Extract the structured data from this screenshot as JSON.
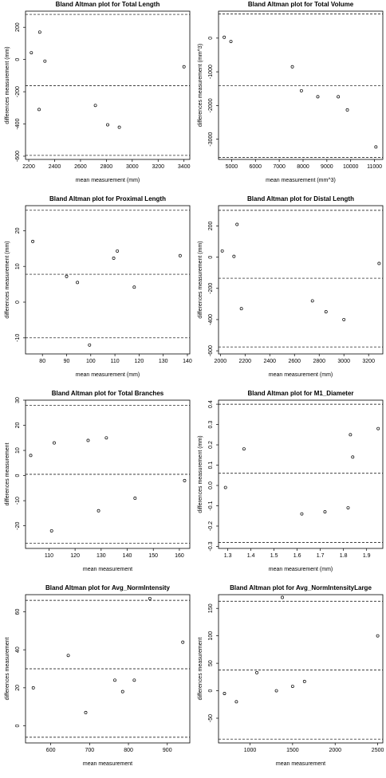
{
  "chart_data": [
    {
      "type": "scatter",
      "title": "Bland Altman plot for Total Length",
      "x_label": "mean measurement (mm)",
      "y_label": "differences measurement (mm)",
      "x": [
        2220,
        2285,
        2325,
        2280,
        2715,
        2810,
        2900,
        3400
      ],
      "values": [
        42,
        170,
        -10,
        -310,
        -285,
        -405,
        -420,
        -45
      ],
      "reference_lines": [
        280,
        -163,
        -595
      ],
      "xlim": [
        2175,
        3445
      ],
      "ylim": [
        -620,
        300
      ],
      "xticks": [
        2200,
        2400,
        2600,
        2800,
        3000,
        3200,
        3400
      ],
      "yticks": [
        -600,
        -400,
        -200,
        0,
        200
      ]
    },
    {
      "type": "scatter",
      "title": "Bland Altman plot for Total Volume",
      "x_label": "mean measurement (mm^3)",
      "y_label": "differences measurement (mm^3)",
      "x": [
        4690,
        4970,
        7550,
        7930,
        8620,
        9480,
        9860,
        11060
      ],
      "values": [
        25,
        -100,
        -850,
        -1560,
        -1740,
        -1740,
        -2130,
        -3230
      ],
      "reference_lines": [
        720,
        -1410,
        -3540
      ],
      "xlim": [
        4450,
        11350
      ],
      "ylim": [
        -3600,
        800
      ],
      "xticks": [
        5000,
        6000,
        7000,
        8000,
        9000,
        10000,
        11000
      ],
      "yticks": [
        -3000,
        -2000,
        -1000,
        0
      ]
    },
    {
      "type": "scatter",
      "title": "Bland Altman plot for Proximal Length",
      "x_label": "mean measurement (mm)",
      "y_label": "differences measurement (mm)",
      "x": [
        76,
        90,
        94.5,
        99.5,
        109.5,
        111,
        118,
        137
      ],
      "values": [
        17,
        7.2,
        5.5,
        -12,
        12.3,
        14.3,
        4.2,
        13
      ],
      "reference_lines": [
        25.7,
        7.8,
        -10
      ],
      "xlim": [
        73,
        141
      ],
      "ylim": [
        -14.5,
        27
      ],
      "xticks": [
        80,
        90,
        100,
        110,
        120,
        130,
        140
      ],
      "yticks": [
        -10,
        0,
        10,
        20
      ]
    },
    {
      "type": "scatter",
      "title": "Bland Altman plot for Distal Length",
      "x_label": "mean measurement (mm)",
      "y_label": "differences measurement (mm)",
      "x": [
        2015,
        2110,
        2135,
        2170,
        2745,
        2855,
        3000,
        3285
      ],
      "values": [
        40,
        5,
        210,
        -330,
        -280,
        -350,
        -400,
        -40
      ],
      "reference_lines": [
        300,
        -135,
        -575
      ],
      "xlim": [
        1985,
        3315
      ],
      "ylim": [
        -620,
        330
      ],
      "xticks": [
        2000,
        2200,
        2400,
        2600,
        2800,
        3000,
        3200
      ],
      "yticks": [
        -600,
        -400,
        -200,
        0,
        200
      ]
    },
    {
      "type": "scatter",
      "title": "Bland Altman plot for Total Branches",
      "x_label": "mean measurement",
      "y_label": "differences measurement",
      "x": [
        103,
        111,
        112,
        125,
        129,
        132,
        143,
        162
      ],
      "values": [
        8,
        -22,
        13,
        14,
        -14,
        15,
        -9,
        -2
      ],
      "reference_lines": [
        28,
        0.5,
        -27
      ],
      "xlim": [
        101,
        164
      ],
      "ylim": [
        -29,
        30
      ],
      "xticks": [
        110,
        120,
        130,
        140,
        150,
        160
      ],
      "yticks": [
        -20,
        -10,
        0,
        10,
        20,
        30
      ]
    },
    {
      "type": "scatter",
      "title": "Bland Altman plot for M1_Diameter",
      "x_label": "mean measurement (mm)",
      "y_label": "differences measurement (mm)",
      "x": [
        1.29,
        1.37,
        1.62,
        1.72,
        1.82,
        1.83,
        1.84,
        1.95
      ],
      "values": [
        -0.01,
        0.18,
        -0.14,
        -0.13,
        -0.11,
        0.25,
        0.14,
        0.28
      ],
      "reference_lines": [
        0.4,
        0.06,
        -0.28
      ],
      "xlim": [
        1.26,
        1.97
      ],
      "ylim": [
        -0.31,
        0.42
      ],
      "xticks": [
        1.3,
        1.4,
        1.5,
        1.6,
        1.7,
        1.8,
        1.9
      ],
      "yticks": [
        -0.3,
        -0.2,
        -0.1,
        {
          "value": 0,
          "label": "0.0"
        },
        0.1,
        0.2,
        0.3,
        0.4
      ]
    },
    {
      "type": "scatter",
      "title": "Bland Altman plot for Avg_NormIntensity",
      "x_label": "mean measurement",
      "y_label": "differences measurement",
      "x": [
        555,
        645,
        690,
        765,
        785,
        815,
        855,
        940
      ],
      "values": [
        20,
        37,
        7,
        24,
        18,
        24,
        67,
        44
      ],
      "reference_lines": [
        66,
        30,
        -6
      ],
      "xlim": [
        535,
        958
      ],
      "ylim": [
        -9,
        69
      ],
      "xticks": [
        600,
        700,
        800,
        900
      ],
      "yticks": [
        0,
        20,
        40,
        60
      ]
    },
    {
      "type": "scatter",
      "title": "Bland Altman plot for Avg_NormIntensityLarge",
      "x_label": "mean measurement",
      "y_label": "differences measurement",
      "x": [
        700,
        840,
        1080,
        1310,
        1380,
        1500,
        1640,
        2500
      ],
      "values": [
        -5,
        -20,
        33,
        0,
        170,
        8,
        17,
        100
      ],
      "reference_lines": [
        163,
        38,
        -88
      ],
      "xlim": [
        630,
        2560
      ],
      "ylim": [
        -95,
        175
      ],
      "xticks": [
        1000,
        1500,
        2000,
        2500
      ],
      "yticks": [
        -50,
        0,
        50,
        100,
        150
      ]
    }
  ]
}
